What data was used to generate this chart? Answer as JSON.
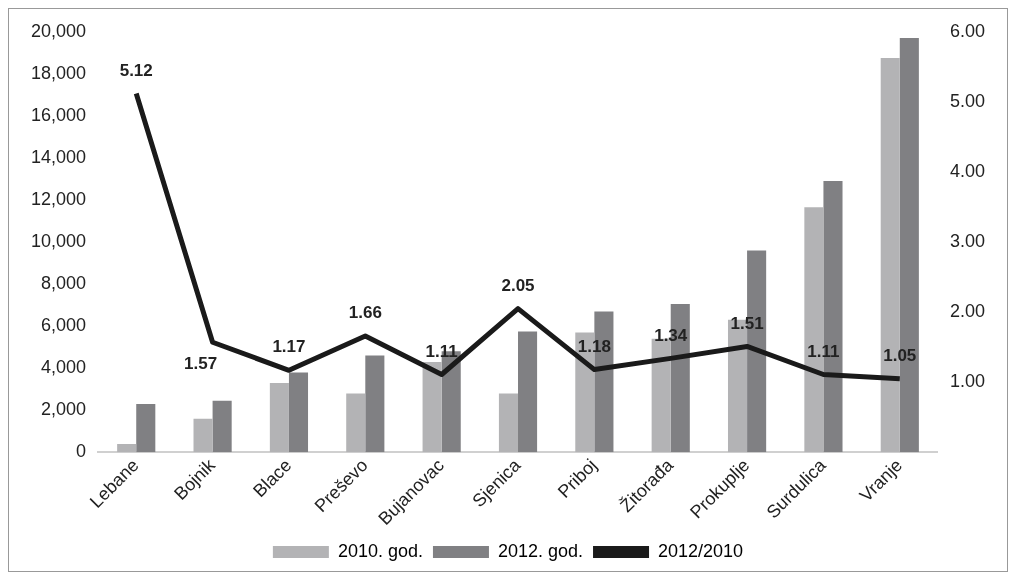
{
  "chart_data": {
    "type": "bar",
    "categories": [
      "Lebane",
      "Bojnik",
      "Blace",
      "Preševo",
      "Bujanovac",
      "Sjenica",
      "Priboj",
      "Žitorađa",
      "Prokuplje",
      "Surdulica",
      "Vranje"
    ],
    "series": [
      {
        "name": "2010. god.",
        "color": "#b3b3b5",
        "values": [
          400,
          1600,
          3300,
          2800,
          4300,
          2800,
          5700,
          5400,
          6300,
          11650,
          18750
        ]
      },
      {
        "name": "2012. god.",
        "color": "#808083",
        "values": [
          2300,
          2450,
          3800,
          4600,
          4800,
          5750,
          6700,
          7050,
          9600,
          12900,
          19700
        ]
      },
      {
        "name": "2012/2010",
        "type": "line",
        "axis": "y2",
        "color": "#1a1a1a",
        "values": [
          5.12,
          1.57,
          1.17,
          1.66,
          1.11,
          2.05,
          1.18,
          1.34,
          1.51,
          1.11,
          1.05
        ],
        "value_labels": [
          "5.12",
          "1.57",
          "1.17",
          "1.66",
          "1.11",
          "2.05",
          "1.18",
          "1.34",
          "1.51",
          "1.11",
          "1.05"
        ]
      }
    ],
    "ylim": [
      0,
      20000
    ],
    "yticks": [
      0,
      {
        "value": 2000,
        "label": "2,000"
      },
      {
        "value": 4000,
        "label": "4,000"
      },
      {
        "value": 6000,
        "label": "6,000"
      },
      {
        "value": 8000,
        "label": "8,000"
      },
      {
        "value": 10000,
        "label": "10,000"
      },
      {
        "value": 12000,
        "label": "12,000"
      },
      {
        "value": 14000,
        "label": "14,000"
      },
      {
        "value": 16000,
        "label": "16,000"
      },
      {
        "value": 18000,
        "label": "18,000"
      },
      {
        "value": 20000,
        "label": "20,000"
      }
    ],
    "y2lim": [
      0,
      6
    ],
    "y2ticks": [
      {
        "value": 0,
        "label": null
      },
      {
        "value": 1,
        "label": "1.00"
      },
      {
        "value": 2,
        "label": "2.00"
      },
      {
        "value": 3,
        "label": "3.00"
      },
      {
        "value": 4,
        "label": "4.00"
      },
      {
        "value": 5,
        "label": "5.00"
      },
      {
        "value": 6,
        "label": "6.00"
      }
    ],
    "grid": false,
    "legend": "bottom",
    "marker": "none"
  }
}
